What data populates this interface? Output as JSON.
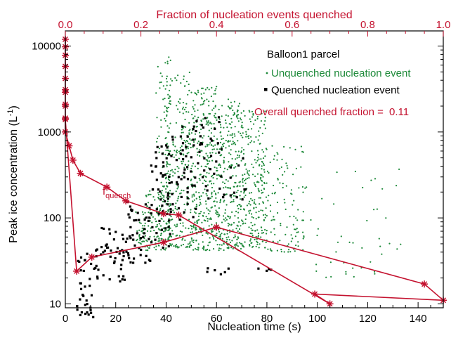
{
  "chart_data": {
    "type": "scatter",
    "title": "",
    "xlabel": "Nucleation time (s)",
    "ylabel": "Peak ice concentration (L",
    "ylabel_sup": "-1",
    "ylabel_close": ")",
    "x2label": "Fraction of nucleation events quenched",
    "xlim": [
      0,
      150
    ],
    "x2lim": [
      0,
      1
    ],
    "ylim": [
      9,
      15000
    ],
    "yscale": "log",
    "xticks": [
      "0",
      "20",
      "40",
      "60",
      "80",
      "100",
      "120",
      "140"
    ],
    "xtick_values": [
      0,
      20,
      40,
      60,
      80,
      100,
      120,
      140
    ],
    "x2ticks": [
      "0.0",
      "0.2",
      "0.4",
      "0.6",
      "0.8",
      "1.0"
    ],
    "x2tick_values": [
      0,
      0.2,
      0.4,
      0.6,
      0.8,
      1.0
    ],
    "yticks": [
      "10",
      "100",
      "1000",
      "10000"
    ],
    "ytick_values": [
      10,
      100,
      1000,
      10000
    ],
    "legend": {
      "parcel": "Balloon1 parcel",
      "unquenched": "Unquenched nucleation event",
      "quenched": "Quenched nucleation event",
      "overall_label": "Overall quenched fraction =",
      "overall_value": "0.11"
    },
    "curve_label": "f",
    "curve_label_sub": "quench",
    "colors": {
      "unquenched": "#1e8a3a",
      "quenched": "#000000",
      "fraction": "#c4122f"
    },
    "fraction_curve": {
      "name": "f quench",
      "fraction": [
        0.0,
        0.0,
        0.0,
        0.0,
        0.0,
        0.0,
        0.0,
        0.0,
        0.03,
        0.07,
        0.26,
        0.4,
        0.95,
        1.0,
        0.66,
        0.7,
        0.3,
        0.26,
        0.16,
        0.11,
        0.04,
        0.02,
        0.01,
        0.0,
        0.0,
        0.0,
        0.0
      ],
      "concentration": [
        12000,
        9800,
        7800,
        5800,
        4200,
        2900,
        2000,
        1400,
        24,
        35,
        52,
        78,
        17,
        11,
        13,
        10,
        108,
        112,
        158,
        228,
        330,
        470,
        690,
        1000,
        1450,
        2100,
        3100
      ]
    },
    "fraction_curve_note": "points ordered along the plotted polyline",
    "unquenched_bands": [
      {
        "x": [
          28,
          32
        ],
        "y": [
          45,
          130
        ],
        "n": 40
      },
      {
        "x": [
          32,
          40
        ],
        "y": [
          42,
          220
        ],
        "n": 90
      },
      {
        "x": [
          36,
          42
        ],
        "y": [
          55,
          8000
        ],
        "n": 120
      },
      {
        "x": [
          40,
          50
        ],
        "y": [
          45,
          5000
        ],
        "n": 240
      },
      {
        "x": [
          50,
          60
        ],
        "y": [
          42,
          3500
        ],
        "n": 320
      },
      {
        "x": [
          60,
          70
        ],
        "y": [
          42,
          2500
        ],
        "n": 300
      },
      {
        "x": [
          70,
          80
        ],
        "y": [
          45,
          1800
        ],
        "n": 240
      },
      {
        "x": [
          80,
          95
        ],
        "y": [
          40,
          700
        ],
        "n": 110
      },
      {
        "x": [
          95,
          135
        ],
        "y": [
          20,
          400
        ],
        "n": 45
      }
    ],
    "quenched_bands": [
      {
        "x": [
          4,
          12
        ],
        "y": [
          7,
          40
        ],
        "n": 35
      },
      {
        "x": [
          12,
          24
        ],
        "y": [
          18,
          80
        ],
        "n": 45
      },
      {
        "x": [
          24,
          34
        ],
        "y": [
          30,
          160
        ],
        "n": 45
      },
      {
        "x": [
          34,
          42
        ],
        "y": [
          45,
          700
        ],
        "n": 55
      },
      {
        "x": [
          42,
          52
        ],
        "y": [
          90,
          1200
        ],
        "n": 45
      },
      {
        "x": [
          52,
          62
        ],
        "y": [
          150,
          1500
        ],
        "n": 30
      },
      {
        "x": [
          62,
          72
        ],
        "y": [
          160,
          500
        ],
        "n": 12
      },
      {
        "x": [
          55,
          70
        ],
        "y": [
          22,
          26
        ],
        "n": 6
      },
      {
        "x": [
          76,
          82
        ],
        "y": [
          24,
          26
        ],
        "n": 4
      }
    ]
  }
}
